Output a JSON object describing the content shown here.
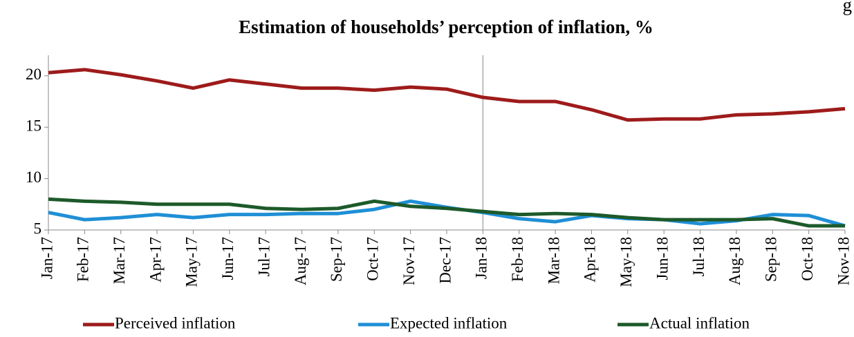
{
  "chart_data": {
    "type": "line",
    "title": "Estimation of households’ perception of inflation, %",
    "corner_text": "g",
    "categories": [
      "Jan-17",
      "Feb-17",
      "Mar-17",
      "Apr-17",
      "May-17",
      "Jun-17",
      "Jul-17",
      "Aug-17",
      "Sep-17",
      "Oct-17",
      "Nov-17",
      "Dec-17",
      "Jan-18",
      "Feb-18",
      "Mar-18",
      "Apr-18",
      "May-18",
      "Jun-18",
      "Jul-18",
      "Aug-18",
      "Sep-18",
      "Oct-18",
      "Nov-18"
    ],
    "series": [
      {
        "name": "Perceived inflation",
        "color": "#9e1b1b",
        "values": [
          20.3,
          20.6,
          20.1,
          19.5,
          18.8,
          19.6,
          19.2,
          18.8,
          18.8,
          18.6,
          18.9,
          18.7,
          17.9,
          17.5,
          17.5,
          16.7,
          15.7,
          15.8,
          15.8,
          16.2,
          16.3,
          16.5,
          16.8
        ]
      },
      {
        "name": "Expected inflation",
        "color": "#1f8fd6",
        "values": [
          6.7,
          6.0,
          6.2,
          6.5,
          6.2,
          6.5,
          6.5,
          6.6,
          6.6,
          7.0,
          7.8,
          7.2,
          6.7,
          6.1,
          5.8,
          6.4,
          6.1,
          6.0,
          5.6,
          5.9,
          6.5,
          6.4,
          5.4
        ]
      },
      {
        "name": "Actual inflation",
        "color": "#1d5a2a",
        "values": [
          8.0,
          7.8,
          7.7,
          7.5,
          7.5,
          7.5,
          7.1,
          7.0,
          7.1,
          7.8,
          7.3,
          7.1,
          6.8,
          6.5,
          6.6,
          6.5,
          6.2,
          6.0,
          6.0,
          6.0,
          6.1,
          5.4,
          5.4
        ]
      }
    ],
    "ylim": [
      5,
      22
    ],
    "yticks": [
      5,
      10,
      15,
      20
    ],
    "grid": false,
    "vline_at": "Jan-18",
    "legend": "bottom"
  }
}
